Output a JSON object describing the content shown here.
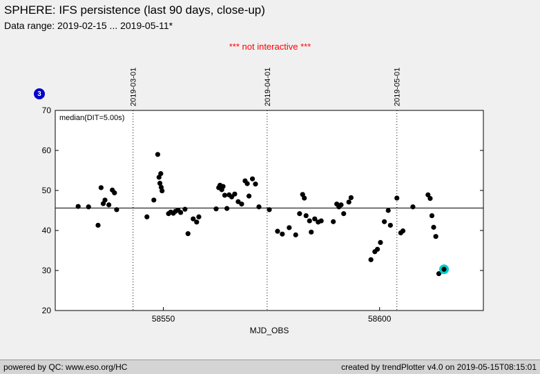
{
  "header": {
    "title": "SPHERE: IFS persistence (last 90 days, close-up)",
    "subtitle": "Data range: 2019-02-15 ... 2019-05-11*",
    "notice": "*** not interactive ***",
    "notice_color": "#ff0000"
  },
  "badge": {
    "label": "3",
    "color": "#0000cc",
    "text_color": "#ffffff"
  },
  "chart_data": {
    "type": "scatter",
    "title": "SPHERE: IFS persistence (last 90 days, close-up)",
    "xlabel": "MJD_OBS",
    "ylabel": "",
    "xlim": [
      58525,
      58624
    ],
    "ylim": [
      20,
      70
    ],
    "x_ticks": [
      58550,
      58600
    ],
    "y_ticks": [
      20,
      30,
      40,
      50,
      60,
      70
    ],
    "grid": false,
    "legend_position": "none",
    "median": {
      "label": "median(DIT=5.00s)",
      "value": 45.6
    },
    "date_lines": [
      {
        "mjd": 58543,
        "label": "2019-03-01"
      },
      {
        "mjd": 58574,
        "label": "2019-04-01"
      },
      {
        "mjd": 58604,
        "label": "2019-05-01"
      }
    ],
    "point_color": "#000000",
    "points": [
      [
        58530.3,
        46.0
      ],
      [
        58532.7,
        45.9
      ],
      [
        58534.9,
        41.3
      ],
      [
        58535.6,
        50.7
      ],
      [
        58536.1,
        46.7
      ],
      [
        58536.5,
        47.6
      ],
      [
        58537.4,
        46.4
      ],
      [
        58538.2,
        50.1
      ],
      [
        58538.7,
        49.4
      ],
      [
        58539.2,
        45.2
      ],
      [
        58546.2,
        43.4
      ],
      [
        58547.8,
        47.6
      ],
      [
        58548.7,
        59.0
      ],
      [
        58549.0,
        53.3
      ],
      [
        58549.2,
        51.8
      ],
      [
        58549.4,
        54.2
      ],
      [
        58549.5,
        50.8
      ],
      [
        58549.7,
        49.9
      ],
      [
        58551.2,
        44.2
      ],
      [
        58551.7,
        44.6
      ],
      [
        58552.3,
        44.3
      ],
      [
        58552.8,
        44.8
      ],
      [
        58553.4,
        45.1
      ],
      [
        58554.0,
        44.5
      ],
      [
        58555.0,
        45.3
      ],
      [
        58555.7,
        39.2
      ],
      [
        58556.9,
        42.9
      ],
      [
        58557.7,
        42.1
      ],
      [
        58558.2,
        43.4
      ],
      [
        58562.2,
        45.4
      ],
      [
        58562.8,
        50.7
      ],
      [
        58563.1,
        51.3
      ],
      [
        58563.5,
        50.2
      ],
      [
        58563.8,
        51.0
      ],
      [
        58564.2,
        48.8
      ],
      [
        58564.7,
        45.5
      ],
      [
        58565.2,
        48.9
      ],
      [
        58565.8,
        48.4
      ],
      [
        58566.5,
        49.1
      ],
      [
        58567.3,
        47.2
      ],
      [
        58568.1,
        46.6
      ],
      [
        58568.9,
        52.4
      ],
      [
        58569.4,
        51.7
      ],
      [
        58569.8,
        48.6
      ],
      [
        58570.6,
        52.9
      ],
      [
        58571.3,
        51.6
      ],
      [
        58572.1,
        45.9
      ],
      [
        58574.5,
        45.2
      ],
      [
        58576.4,
        39.8
      ],
      [
        58577.5,
        39.1
      ],
      [
        58579.1,
        40.7
      ],
      [
        58580.6,
        38.9
      ],
      [
        58581.5,
        44.2
      ],
      [
        58582.2,
        49.0
      ],
      [
        58582.6,
        48.1
      ],
      [
        58583.0,
        43.7
      ],
      [
        58583.8,
        42.4
      ],
      [
        58584.2,
        39.6
      ],
      [
        58585.0,
        42.9
      ],
      [
        58585.8,
        42.1
      ],
      [
        58586.5,
        42.4
      ],
      [
        58589.3,
        42.2
      ],
      [
        58590.1,
        46.6
      ],
      [
        58590.6,
        45.9
      ],
      [
        58591.1,
        46.4
      ],
      [
        58591.7,
        44.2
      ],
      [
        58592.9,
        47.1
      ],
      [
        58593.4,
        48.2
      ],
      [
        58598.0,
        32.7
      ],
      [
        58598.9,
        34.7
      ],
      [
        58599.5,
        35.3
      ],
      [
        58600.2,
        37.0
      ],
      [
        58601.1,
        42.2
      ],
      [
        58602.0,
        45.0
      ],
      [
        58602.5,
        41.3
      ],
      [
        58604.0,
        48.1
      ],
      [
        58604.9,
        39.4
      ],
      [
        58605.4,
        39.9
      ],
      [
        58607.7,
        45.9
      ],
      [
        58611.2,
        48.9
      ],
      [
        58611.7,
        48.0
      ],
      [
        58612.1,
        43.7
      ],
      [
        58612.5,
        40.8
      ],
      [
        58613.0,
        38.5
      ],
      [
        58613.7,
        29.2
      ]
    ],
    "highlight": {
      "x": 58614.9,
      "y": 30.3,
      "color": "#00cccc"
    }
  },
  "footer": {
    "left": "powered by QC: www.eso.org/HC",
    "right": "created by trendPlotter v4.0 on 2019-05-15T08:15:01"
  }
}
